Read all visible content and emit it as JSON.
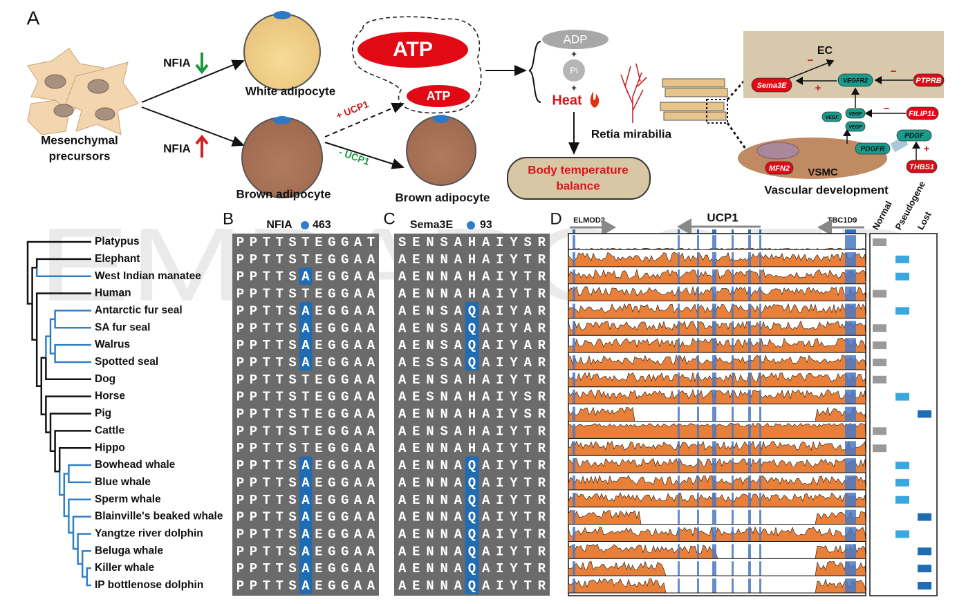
{
  "watermark": "EMBARGOED",
  "panel_a": {
    "label": "A",
    "precursors": [
      "Mesenchymal",
      "precursors"
    ],
    "nfia_down": "NFIA",
    "nfia_up": "NFIA",
    "white_adipocyte": "White adipocyte",
    "brown_adipocyte": "Brown adipocyte",
    "brown_adipocyte_uncoupled": "Brown adipocyte",
    "atp_large": "ATP",
    "atp_small": "ATP",
    "plus_ucp1": "+ UCP1",
    "minus_ucp1": "- UCP1",
    "adp": "ADP",
    "plus_pi": "+",
    "pi": "Pi",
    "plus_heat": "+",
    "heat": "Heat",
    "body_temperature": [
      "Body temperature",
      "balance"
    ],
    "retia": "Retia mirabilia",
    "ec": "EC",
    "sema3e": "Sema3E",
    "vegfr2": "VEGFR2",
    "ptprb": "PTPRB",
    "filip1l": "FILIP1L",
    "vegf": [
      "VEGF",
      "VEGF",
      "VEGF"
    ],
    "pdgf": "PDGF",
    "pdgfr": "PDGFR",
    "mfn2": "MFN2",
    "vsmc": "VSMC",
    "thbs1": "THBS1",
    "vascular": "Vascular development",
    "signs": [
      "−",
      "+",
      "−",
      "−",
      "+"
    ]
  },
  "species": [
    "Platypus",
    "Elephant",
    "West Indian manatee",
    "Human",
    "Antarctic fur seal",
    "SA fur seal",
    "Walrus",
    "Spotted seal",
    "Dog",
    "Horse",
    "Pig",
    "Cattle",
    "Hippo",
    "Bowhead whale",
    "Blue whale",
    "Sperm whale",
    "Blainville's beaked whale",
    "Yangtze river dolphin",
    "Beluga whale",
    "Killer whale",
    "IP bottlenose dolphin"
  ],
  "panel_b": {
    "label": "B",
    "gene": "NFIA",
    "site": "463",
    "rows": [
      "PPTTSTEGGAT",
      "PPTTSTEGGAA",
      "PPTTSAEGGAA",
      "PPTTSTEGGAA",
      "PPTTSAEGGAA",
      "PPTTSAEGGAA",
      "PPTTSAEGGAA",
      "PPTTSAEGGAA",
      "PPTTSTEGGAA",
      "PPTTSTEGGAA",
      "PPTTSTEGGAA",
      "PPTTSTEGGAA",
      "PPTTSTEGGAA",
      "PPTTSAEGGAA",
      "PPTTSAEGGAA",
      "PPTTSAEGGAA",
      "PPTTSAEGGAA",
      "PPTTSAEGGAA",
      "PPTTSAEGGAA",
      "PPTTSAEGGAA",
      "PPTTSAEGGAA"
    ]
  },
  "panel_c": {
    "label": "C",
    "gene": "Sema3E",
    "site": "93",
    "rows": [
      "SENSAHAIYSR",
      "AENNAHAIYTR",
      "AENNAHAIYTR",
      "AENNAHAIYTR",
      "AENSAQAIYAR",
      "AENSAQAIYAR",
      "AENSAQAIYAR",
      "AESSAQAIYAR",
      "AENSAHAIYTR",
      "AESNAHAIYSR",
      "AENNAHAIYSR",
      "AENSAHAIYTR",
      "AENNAHAIYTR",
      "AENNAQAIYTR",
      "AENNAQAIYTR",
      "AENNAQAIYTR",
      "AENNAQAIYTR",
      "AENNAQAIYTR",
      "AENNAQAIYTR",
      "AENNAQAIYTR",
      "AENNAQAIYTR"
    ]
  },
  "panel_d": {
    "label": "D",
    "genes": [
      "ELMOD2",
      "UCP1",
      "TBC1D9"
    ],
    "status_headers": [
      "Normal",
      "Pseudogene",
      "Lost"
    ],
    "status_colors": [
      "#9a9a9a",
      "#3aa8e0",
      "#1f6cb4"
    ],
    "status": [
      "Normal",
      "Pseudogene",
      "Pseudogene",
      "Normal",
      "Pseudogene",
      "Normal",
      "Normal",
      "Normal",
      "Normal",
      "Pseudogene",
      "Lost",
      "Normal",
      "Normal",
      "Pseudogene",
      "Pseudogene",
      "Pseudogene",
      "Lost",
      "Pseudogene",
      "Lost",
      "Lost",
      "Lost"
    ]
  }
}
